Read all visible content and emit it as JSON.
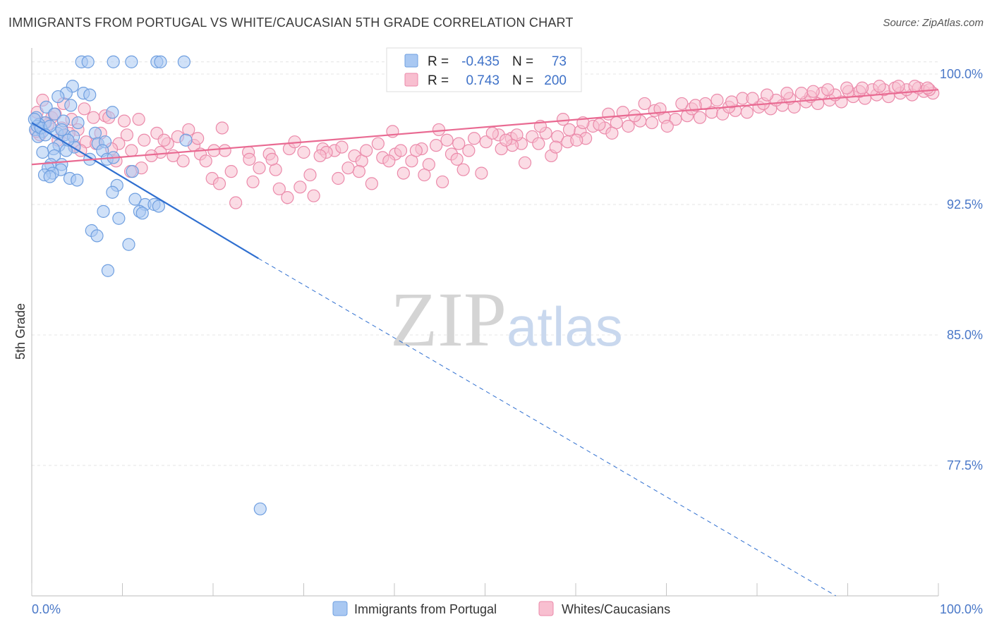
{
  "title": "IMMIGRANTS FROM PORTUGAL VS WHITE/CAUCASIAN 5TH GRADE CORRELATION CHART",
  "source": "Source: ZipAtlas.com",
  "watermark": {
    "zip": "ZIP",
    "atlas": "atlas"
  },
  "legend": {
    "r_label": "R =",
    "n_label": "N =",
    "rows": [
      {
        "r": "-0.435",
        "n": "73",
        "color": "#a9c8f2",
        "stroke": "#6f9fe0"
      },
      {
        "r": "0.743",
        "n": "200",
        "color": "#f8bfd0",
        "stroke": "#eb8aaa"
      }
    ]
  },
  "bottom_legend": [
    {
      "label": "Immigrants from Portugal",
      "color": "#a9c8f2",
      "stroke": "#6f9fe0"
    },
    {
      "label": "Whites/Caucasians",
      "color": "#f8bfd0",
      "stroke": "#eb8aaa"
    }
  ],
  "chart_data": {
    "type": "scatter",
    "ylabel": "5th Grade",
    "xlim": [
      0,
      100
    ],
    "ylim": [
      70.0,
      101.5
    ],
    "x_tick_labels": [
      "0.0%",
      "100.0%"
    ],
    "y_ticks": [
      {
        "value": 100.0,
        "label": "100.0%"
      },
      {
        "value": 92.5,
        "label": "92.5%"
      },
      {
        "value": 85.0,
        "label": "85.0%"
      },
      {
        "value": 77.5,
        "label": "77.5%"
      }
    ],
    "grid": true,
    "series": [
      {
        "name": "Immigrants from Portugal",
        "color": "#a9c8f2",
        "stroke": "#6f9fe0",
        "trend": {
          "x0": 0,
          "y0": 97.2,
          "x1": 25,
          "y1": 89.4,
          "x_dash_end": 100,
          "y_dash_end": 65.8,
          "color": "#2f6fd0"
        },
        "points": [
          [
            5.5,
            100.7
          ],
          [
            6.2,
            100.7
          ],
          [
            9.0,
            100.7
          ],
          [
            11.0,
            100.7
          ],
          [
            13.8,
            100.7
          ],
          [
            14.2,
            100.7
          ],
          [
            16.8,
            100.7
          ],
          [
            4.5,
            99.3
          ],
          [
            3.8,
            98.9
          ],
          [
            5.7,
            98.9
          ],
          [
            2.9,
            98.7
          ],
          [
            6.4,
            98.8
          ],
          [
            1.6,
            98.1
          ],
          [
            4.3,
            98.2
          ],
          [
            2.5,
            97.7
          ],
          [
            8.9,
            97.8
          ],
          [
            0.5,
            97.5
          ],
          [
            1.5,
            97.2
          ],
          [
            3.5,
            97.3
          ],
          [
            0.8,
            97.1
          ],
          [
            0.4,
            96.8
          ],
          [
            1.2,
            96.7
          ],
          [
            2.8,
            96.6
          ],
          [
            3.6,
            96.5
          ],
          [
            4.6,
            96.4
          ],
          [
            0.7,
            96.4
          ],
          [
            7.0,
            96.6
          ],
          [
            7.3,
            96.0
          ],
          [
            8.1,
            96.1
          ],
          [
            3.0,
            95.9
          ],
          [
            4.7,
            95.8
          ],
          [
            7.8,
            95.6
          ],
          [
            2.4,
            95.7
          ],
          [
            3.8,
            95.6
          ],
          [
            1.2,
            95.5
          ],
          [
            2.5,
            95.3
          ],
          [
            6.4,
            95.1
          ],
          [
            8.3,
            95.1
          ],
          [
            9.0,
            95.2
          ],
          [
            2.1,
            94.8
          ],
          [
            3.3,
            94.8
          ],
          [
            1.8,
            94.6
          ],
          [
            3.2,
            94.5
          ],
          [
            2.3,
            94.3
          ],
          [
            1.4,
            94.2
          ],
          [
            2.0,
            94.1
          ],
          [
            4.2,
            94.0
          ],
          [
            5.0,
            93.9
          ],
          [
            11.1,
            94.4
          ],
          [
            9.4,
            93.6
          ],
          [
            8.9,
            93.2
          ],
          [
            11.4,
            92.8
          ],
          [
            12.5,
            92.5
          ],
          [
            13.5,
            92.5
          ],
          [
            14.0,
            92.4
          ],
          [
            11.9,
            92.1
          ],
          [
            12.2,
            92.0
          ],
          [
            7.9,
            92.1
          ],
          [
            9.6,
            91.7
          ],
          [
            6.6,
            91.0
          ],
          [
            7.2,
            90.7
          ],
          [
            10.7,
            90.2
          ],
          [
            8.4,
            88.7
          ],
          [
            17.0,
            96.2
          ],
          [
            0.6,
            97.0
          ],
          [
            1.0,
            96.9
          ],
          [
            0.3,
            97.4
          ],
          [
            2.0,
            97.0
          ],
          [
            5.1,
            97.2
          ],
          [
            3.3,
            96.8
          ],
          [
            25.2,
            75.0
          ],
          [
            1.5,
            96.5
          ],
          [
            4.0,
            96.2
          ]
        ]
      },
      {
        "name": "Whites/Caucasians",
        "color": "#f8bfd0",
        "stroke": "#eb8aaa",
        "trend": {
          "x0": 0,
          "y0": 94.8,
          "x1": 100,
          "y1": 99.1,
          "color": "#e96a92"
        },
        "points": [
          [
            1.2,
            98.5
          ],
          [
            3.5,
            98.3
          ],
          [
            5.8,
            98.0
          ],
          [
            0.6,
            97.8
          ],
          [
            2.2,
            97.5
          ],
          [
            4.4,
            97.4
          ],
          [
            6.8,
            97.5
          ],
          [
            8.1,
            97.6
          ],
          [
            11.8,
            97.4
          ],
          [
            1.8,
            97.1
          ],
          [
            3.3,
            96.9
          ],
          [
            5.1,
            96.8
          ],
          [
            7.6,
            96.6
          ],
          [
            10.5,
            96.5
          ],
          [
            13.8,
            96.6
          ],
          [
            16.1,
            96.4
          ],
          [
            2.9,
            96.2
          ],
          [
            6.0,
            96.1
          ],
          [
            9.6,
            96.0
          ],
          [
            12.4,
            96.2
          ],
          [
            15.0,
            96.0
          ],
          [
            17.9,
            95.9
          ],
          [
            0.9,
            96.5
          ],
          [
            4.7,
            95.9
          ],
          [
            8.8,
            95.7
          ],
          [
            11.0,
            95.6
          ],
          [
            14.2,
            95.5
          ],
          [
            18.6,
            95.4
          ],
          [
            21.3,
            95.6
          ],
          [
            23.9,
            95.5
          ],
          [
            26.2,
            95.4
          ],
          [
            28.4,
            95.7
          ],
          [
            30.0,
            95.5
          ],
          [
            32.1,
            95.7
          ],
          [
            33.4,
            95.6
          ],
          [
            35.6,
            95.3
          ],
          [
            36.4,
            95.0
          ],
          [
            38.7,
            95.2
          ],
          [
            40.1,
            95.4
          ],
          [
            41.9,
            95.0
          ],
          [
            43.0,
            95.7
          ],
          [
            44.6,
            95.9
          ],
          [
            45.8,
            96.2
          ],
          [
            47.1,
            96.0
          ],
          [
            48.8,
            96.3
          ],
          [
            50.1,
            96.1
          ],
          [
            51.5,
            96.5
          ],
          [
            52.9,
            96.3
          ],
          [
            54.0,
            96.0
          ],
          [
            55.2,
            96.4
          ],
          [
            56.7,
            96.6
          ],
          [
            58.0,
            96.4
          ],
          [
            59.3,
            96.8
          ],
          [
            60.5,
            96.7
          ],
          [
            61.9,
            97.0
          ],
          [
            63.2,
            96.9
          ],
          [
            64.5,
            97.2
          ],
          [
            65.8,
            97.0
          ],
          [
            67.1,
            97.3
          ],
          [
            68.4,
            97.2
          ],
          [
            69.8,
            97.5
          ],
          [
            71.0,
            97.4
          ],
          [
            72.3,
            97.6
          ],
          [
            73.7,
            97.5
          ],
          [
            75.0,
            97.8
          ],
          [
            76.2,
            97.7
          ],
          [
            77.6,
            97.9
          ],
          [
            78.9,
            97.8
          ],
          [
            80.2,
            98.1
          ],
          [
            81.5,
            98.0
          ],
          [
            82.8,
            98.2
          ],
          [
            84.1,
            98.1
          ],
          [
            85.4,
            98.4
          ],
          [
            86.7,
            98.3
          ],
          [
            88.0,
            98.5
          ],
          [
            89.3,
            98.4
          ],
          [
            90.6,
            98.7
          ],
          [
            91.9,
            98.6
          ],
          [
            93.2,
            98.8
          ],
          [
            94.5,
            98.7
          ],
          [
            95.8,
            98.9
          ],
          [
            97.1,
            98.8
          ],
          [
            98.4,
            99.0
          ],
          [
            99.4,
            98.9
          ],
          [
            22.0,
            94.4
          ],
          [
            24.4,
            93.8
          ],
          [
            26.9,
            94.5
          ],
          [
            29.6,
            93.5
          ],
          [
            31.1,
            93.0
          ],
          [
            33.8,
            94.0
          ],
          [
            36.1,
            94.4
          ],
          [
            37.5,
            93.7
          ],
          [
            39.4,
            95.0
          ],
          [
            41.0,
            94.3
          ],
          [
            43.8,
            94.8
          ],
          [
            46.3,
            95.4
          ],
          [
            48.2,
            95.6
          ],
          [
            49.6,
            94.3
          ],
          [
            51.8,
            95.7
          ],
          [
            53.5,
            96.5
          ],
          [
            55.9,
            96.0
          ],
          [
            57.3,
            95.3
          ],
          [
            59.1,
            96.1
          ],
          [
            60.8,
            97.2
          ],
          [
            62.6,
            97.1
          ],
          [
            64.0,
            96.6
          ],
          [
            66.5,
            97.6
          ],
          [
            68.7,
            97.9
          ],
          [
            70.1,
            97.0
          ],
          [
            72.8,
            98.0
          ],
          [
            74.3,
            98.3
          ],
          [
            76.9,
            98.1
          ],
          [
            78.4,
            98.6
          ],
          [
            80.7,
            98.3
          ],
          [
            82.1,
            98.5
          ],
          [
            83.6,
            98.6
          ],
          [
            85.9,
            98.7
          ],
          [
            87.2,
            98.9
          ],
          [
            88.6,
            98.8
          ],
          [
            90.1,
            99.0
          ],
          [
            91.3,
            99.0
          ],
          [
            92.7,
            99.1
          ],
          [
            94.0,
            99.1
          ],
          [
            95.2,
            99.2
          ],
          [
            96.5,
            99.1
          ],
          [
            97.8,
            99.2
          ],
          [
            99.0,
            99.1
          ],
          [
            20.1,
            95.6
          ],
          [
            19.2,
            95.0
          ],
          [
            17.3,
            96.8
          ],
          [
            15.6,
            95.3
          ],
          [
            14.6,
            96.2
          ],
          [
            13.2,
            95.3
          ],
          [
            12.1,
            94.6
          ],
          [
            10.9,
            94.4
          ],
          [
            9.3,
            95.0
          ],
          [
            7.1,
            96.0
          ],
          [
            5.4,
            95.6
          ],
          [
            4.1,
            96.6
          ],
          [
            2.6,
            97.7
          ],
          [
            1.4,
            97.2
          ],
          [
            0.5,
            96.7
          ],
          [
            8.5,
            97.5
          ],
          [
            10.2,
            97.3
          ],
          [
            19.9,
            94.0
          ],
          [
            20.7,
            93.7
          ],
          [
            22.5,
            92.6
          ],
          [
            25.1,
            94.6
          ],
          [
            27.3,
            93.4
          ],
          [
            28.2,
            92.9
          ],
          [
            30.7,
            94.2
          ],
          [
            32.5,
            95.5
          ],
          [
            34.9,
            94.6
          ],
          [
            38.2,
            96.0
          ],
          [
            42.4,
            95.6
          ],
          [
            44.9,
            96.8
          ],
          [
            47.6,
            94.5
          ],
          [
            50.8,
            96.6
          ],
          [
            53.0,
            95.9
          ],
          [
            56.1,
            97.0
          ],
          [
            58.6,
            97.4
          ],
          [
            61.1,
            96.3
          ],
          [
            63.6,
            97.7
          ],
          [
            65.2,
            97.8
          ],
          [
            67.6,
            98.3
          ],
          [
            69.3,
            98.0
          ],
          [
            71.7,
            98.3
          ],
          [
            73.2,
            98.2
          ],
          [
            75.6,
            98.5
          ],
          [
            77.2,
            98.4
          ],
          [
            79.5,
            98.6
          ],
          [
            81.1,
            98.8
          ],
          [
            83.3,
            98.9
          ],
          [
            84.9,
            98.9
          ],
          [
            86.2,
            99.0
          ],
          [
            87.8,
            99.1
          ],
          [
            89.9,
            99.2
          ],
          [
            91.6,
            99.2
          ],
          [
            93.5,
            99.3
          ],
          [
            95.6,
            99.3
          ],
          [
            97.4,
            99.3
          ],
          [
            98.8,
            99.2
          ],
          [
            18.3,
            96.3
          ],
          [
            16.7,
            95.0
          ],
          [
            39.8,
            96.7
          ],
          [
            45.3,
            93.8
          ],
          [
            21.0,
            96.9
          ],
          [
            24.0,
            95.1
          ],
          [
            26.5,
            95.1
          ],
          [
            29.0,
            96.1
          ],
          [
            31.8,
            95.3
          ],
          [
            34.2,
            95.8
          ],
          [
            36.9,
            95.6
          ],
          [
            40.7,
            95.6
          ],
          [
            43.3,
            94.2
          ],
          [
            46.9,
            95.1
          ],
          [
            52.3,
            96.2
          ],
          [
            54.4,
            94.9
          ],
          [
            57.8,
            95.8
          ],
          [
            60.1,
            96.2
          ]
        ]
      }
    ]
  }
}
